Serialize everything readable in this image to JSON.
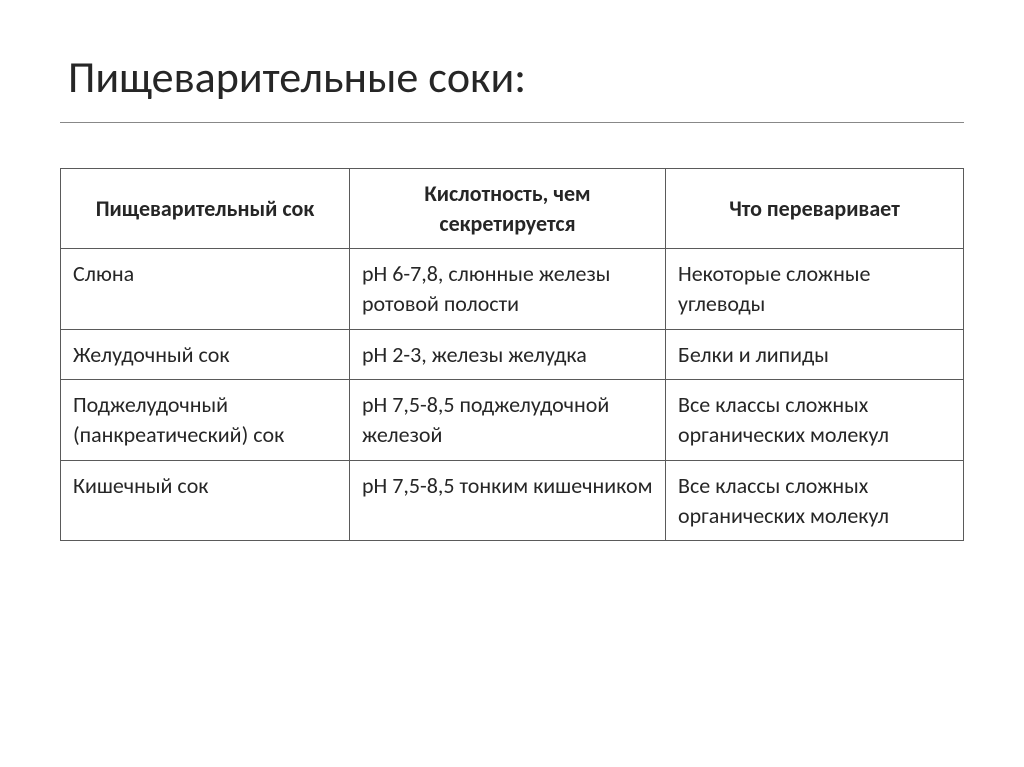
{
  "slide": {
    "title": "Пищеварительные соки:"
  },
  "table": {
    "headers": {
      "col1": "Пищеварительный сок",
      "col2": "Кислотность, чем секретируется",
      "col3": "Что переваривает"
    },
    "rows": [
      {
        "col1": "Слюна",
        "col2": "pH 6-7,8, слюнные железы ротовой полости",
        "col3": "Некоторые сложные углеводы"
      },
      {
        "col1": "Желудочный сок",
        "col2": "pH 2-3, железы желудка",
        "col3": "Белки и липиды"
      },
      {
        "col1": "Поджелудочный (панкреатический) сок",
        "col2": "pH 7,5-8,5 поджелудочной железой",
        "col3": "Все классы сложных органических молекул"
      },
      {
        "col1": "Кишечный сок",
        "col2": "pH 7,5-8,5 тонким кишечником",
        "col3": "Все классы сложных органических молекул"
      }
    ]
  },
  "styles": {
    "background_color": "#ffffff",
    "text_color": "#262626",
    "border_color": "#5a5a5a",
    "underline_color": "#888888",
    "title_fontsize": 44,
    "table_fontsize": 22,
    "font_family": "Calibri"
  }
}
